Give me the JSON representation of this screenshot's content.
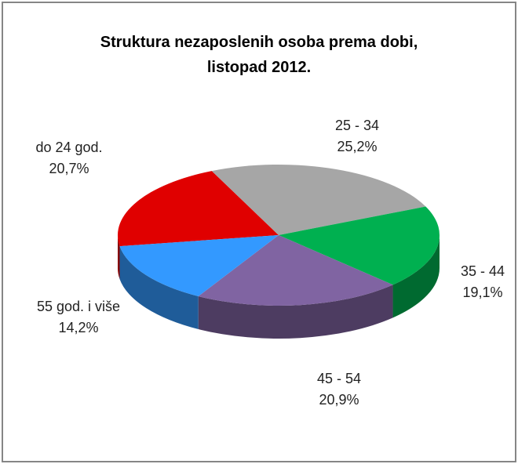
{
  "chart_data": {
    "type": "pie",
    "title": "Struktura nezaposlenih osoba prema dobi, listopad 2012.",
    "categories": [
      "do 24 god.",
      "25 - 34",
      "35 - 44",
      "45 - 54",
      "55 god. i više"
    ],
    "values": [
      20.7,
      25.2,
      19.1,
      20.9,
      14.2
    ],
    "value_labels": [
      "20,7%",
      "25,2%",
      "19,1%",
      "20,9%",
      "14,2%"
    ],
    "colors": [
      "#e00000",
      "#a6a6a6",
      "#00b050",
      "#8064a2",
      "#3399ff"
    ]
  }
}
